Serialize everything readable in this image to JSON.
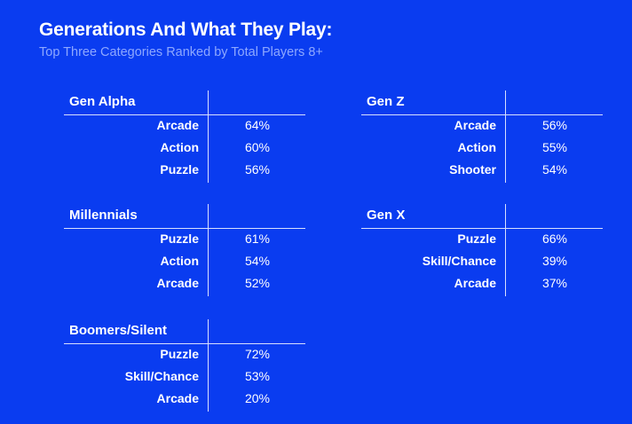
{
  "chart_data": {
    "type": "table",
    "title": "Generations And What They Play:",
    "subtitle": "Top Three Categories Ranked by Total Players 8+",
    "groups": [
      {
        "name": "Gen Alpha",
        "rows": [
          {
            "category": "Arcade",
            "value": "64%"
          },
          {
            "category": "Action",
            "value": "60%"
          },
          {
            "category": "Puzzle",
            "value": "56%"
          }
        ]
      },
      {
        "name": "Gen Z",
        "rows": [
          {
            "category": "Arcade",
            "value": "56%"
          },
          {
            "category": "Action",
            "value": "55%"
          },
          {
            "category": "Shooter",
            "value": "54%"
          }
        ]
      },
      {
        "name": "Millennials",
        "rows": [
          {
            "category": "Puzzle",
            "value": "61%"
          },
          {
            "category": "Action",
            "value": "54%"
          },
          {
            "category": "Arcade",
            "value": "52%"
          }
        ]
      },
      {
        "name": "Gen X",
        "rows": [
          {
            "category": "Puzzle",
            "value": "66%"
          },
          {
            "category": "Skill/Chance",
            "value": "39%"
          },
          {
            "category": "Arcade",
            "value": "37%"
          }
        ]
      },
      {
        "name": "Boomers/Silent",
        "rows": [
          {
            "category": "Puzzle",
            "value": "72%"
          },
          {
            "category": "Skill/Chance",
            "value": "53%"
          },
          {
            "category": "Arcade",
            "value": "20%"
          }
        ]
      }
    ]
  },
  "colors": {
    "background": "#0a3cf0",
    "subtitle": "#8ea8ff",
    "rule": "#d8e0ff"
  }
}
